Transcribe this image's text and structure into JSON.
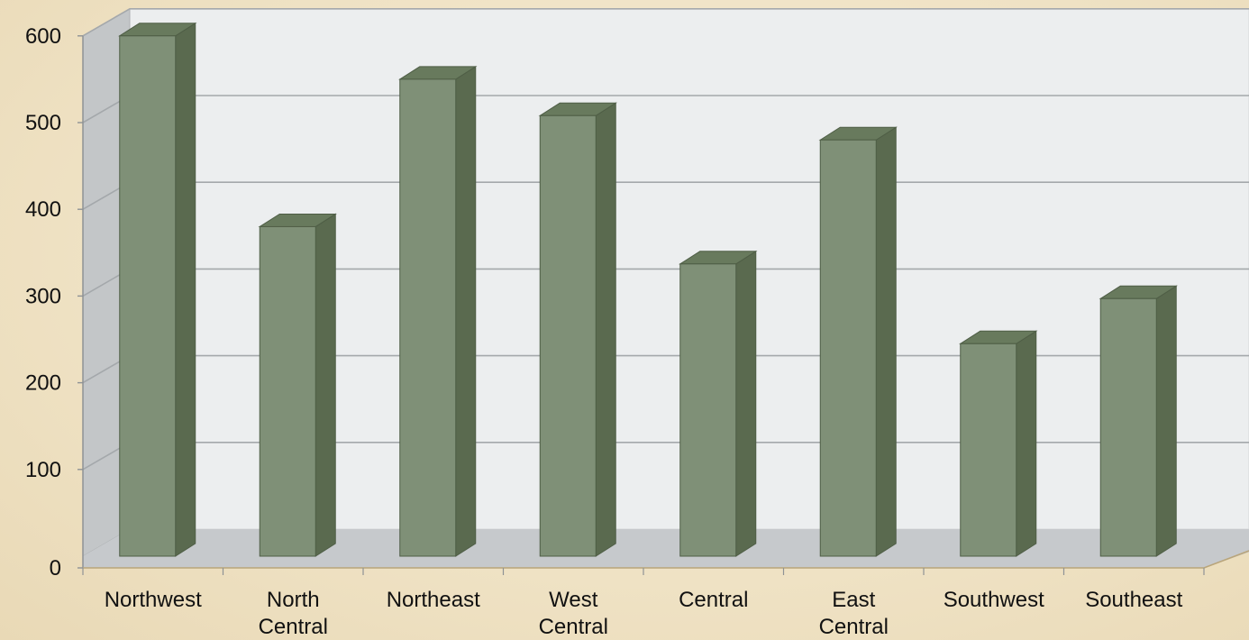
{
  "chart_data": {
    "type": "bar",
    "title": "",
    "xlabel": "",
    "ylabel": "",
    "categories": [
      [
        "Northwest"
      ],
      [
        "North",
        "Central"
      ],
      [
        "Northeast"
      ],
      [
        "West",
        "Central"
      ],
      [
        "Central"
      ],
      [
        "East",
        "Central"
      ],
      [
        "Southwest"
      ],
      [
        "Southeast"
      ]
    ],
    "values": [
      600,
      380,
      550,
      508,
      337,
      480,
      245,
      297
    ],
    "ylim": [
      0,
      600
    ],
    "yticks": [
      0,
      100,
      200,
      300,
      400,
      500,
      600
    ],
    "grid": true,
    "legend": "none",
    "three_d": true,
    "colors": {
      "bar_front": "#7f9077",
      "bar_side": "#5a6a4f",
      "bar_top": "#687a5d",
      "bar_edge": "#4f5e46",
      "wall": "#eceeef",
      "side_wall": "#c3c6c8",
      "floor": "#c6c9cc",
      "gridline": "#a4a8ab"
    }
  }
}
